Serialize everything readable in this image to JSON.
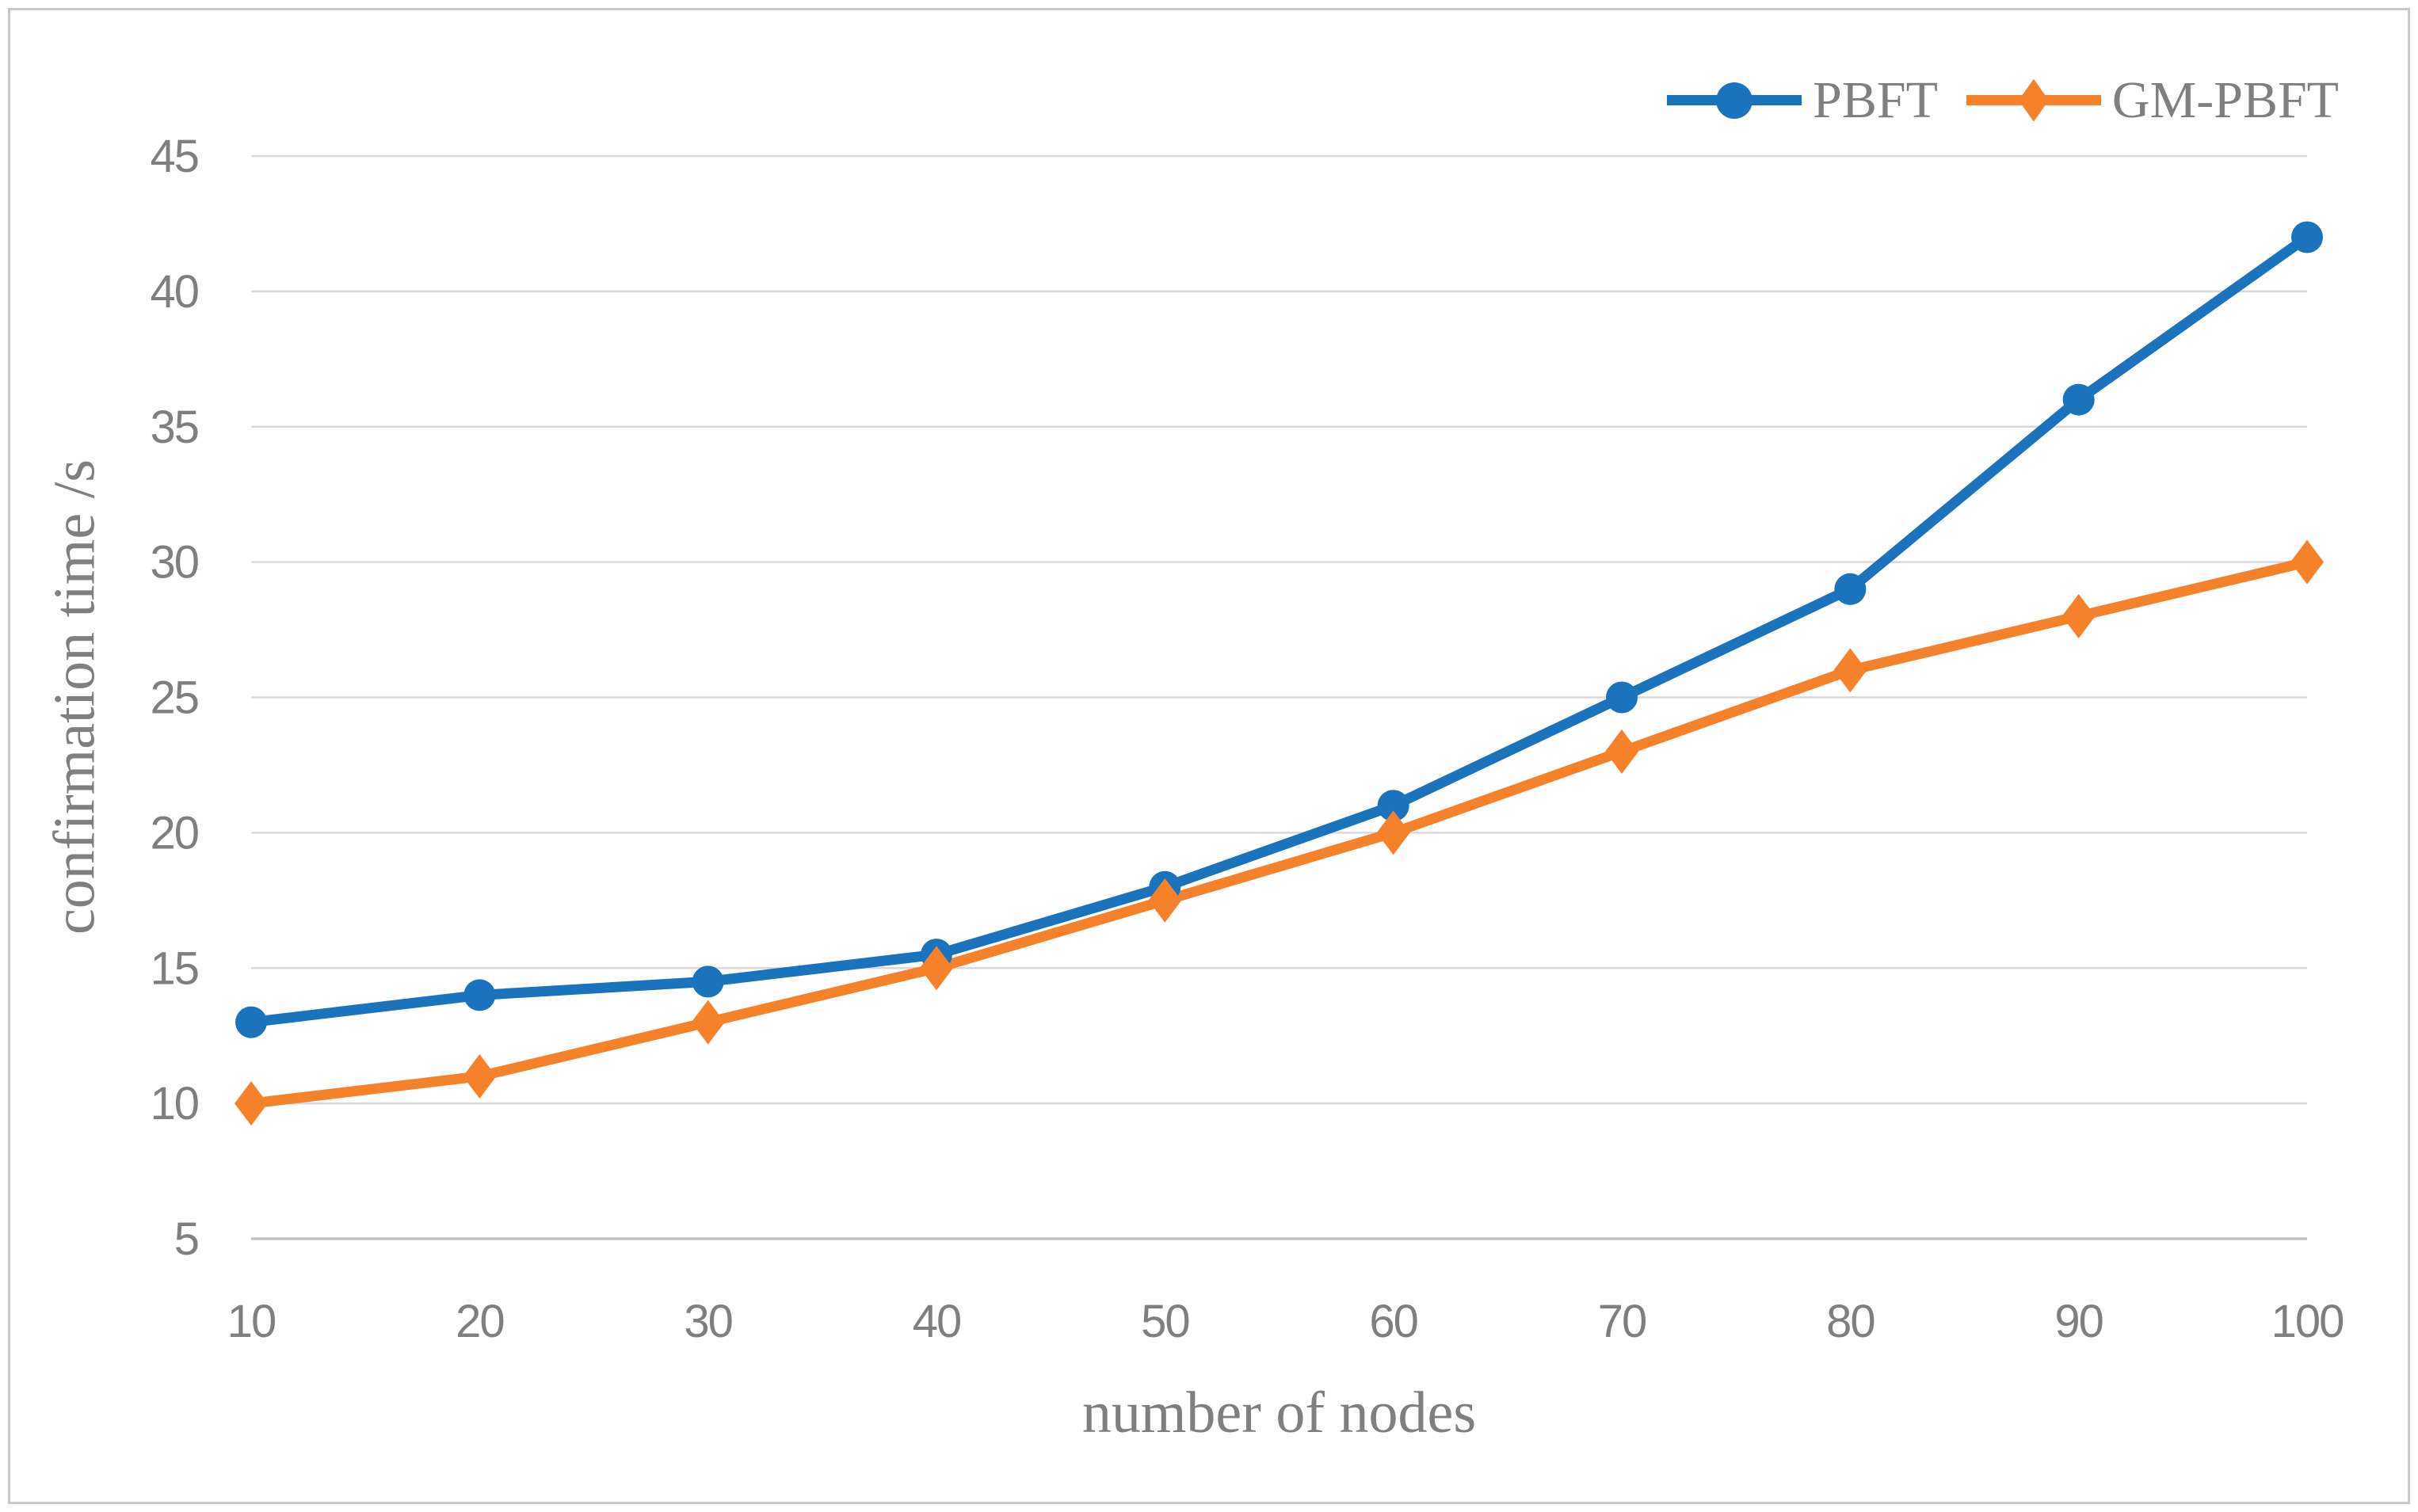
{
  "chart_data": {
    "type": "line",
    "title": "",
    "xlabel": "number of nodes",
    "ylabel": "confirmation time /s",
    "categories": [
      10,
      20,
      30,
      40,
      50,
      60,
      70,
      80,
      90,
      100
    ],
    "series": [
      {
        "name": "PBFT",
        "marker": "circle",
        "color": "#1b73be",
        "values": [
          13,
          14,
          14.5,
          15.5,
          18,
          21,
          25,
          29,
          36,
          42
        ]
      },
      {
        "name": "GM-PBFT",
        "marker": "diamond",
        "color": "#f5812a",
        "values": [
          10,
          11,
          13,
          15,
          17.5,
          20,
          23,
          26,
          28,
          30
        ]
      }
    ],
    "ylim": [
      5,
      45
    ],
    "yticks": [
      5,
      10,
      15,
      20,
      25,
      30,
      35,
      40,
      45
    ],
    "grid": true,
    "legend_position": "top-right",
    "grid_color": "#d9d9d9",
    "axis_line_color": "#bfbfbf",
    "text_color": "#7f7f7f"
  }
}
